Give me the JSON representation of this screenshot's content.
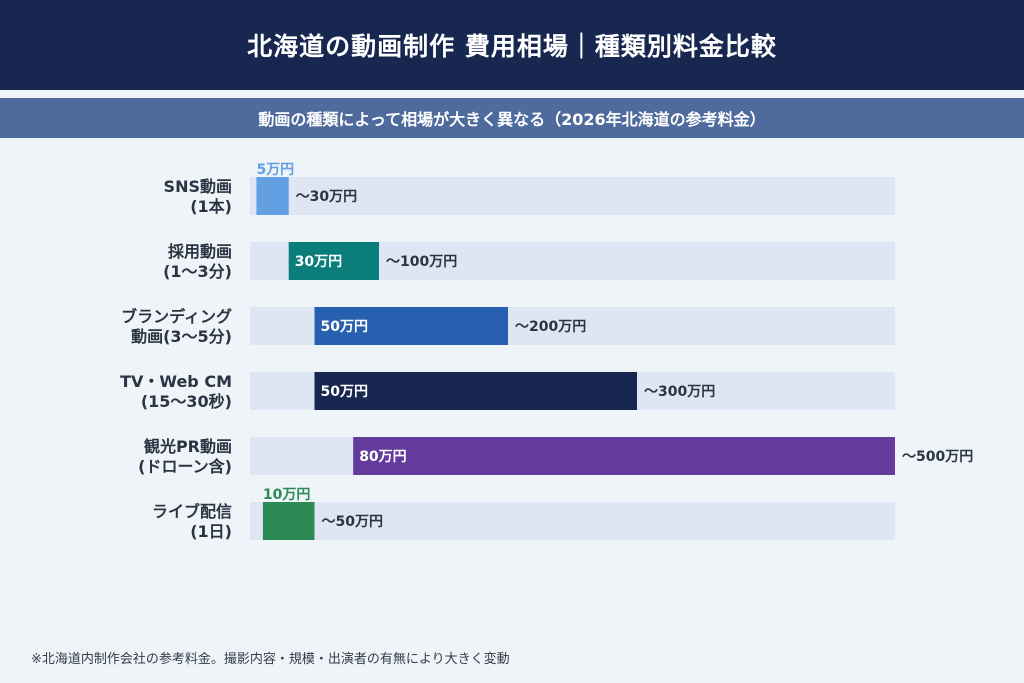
{
  "header": {
    "title": "北海道の動画制作 費用相場｜種類別料金比較",
    "subtitle": "動画の種類によって相場が大きく異なる（2026年北海道の参考料金）"
  },
  "chart_data": {
    "type": "bar",
    "orientation": "horizontal-range",
    "unit": "万円",
    "categories": [
      [
        "SNS動画",
        "(1本)"
      ],
      [
        "採用動画",
        "(1〜3分)"
      ],
      [
        "ブランディング",
        "動画(3〜5分)"
      ],
      [
        "TV・Web CM",
        "(15〜30秒)"
      ],
      [
        "観光PR動画",
        "(ドローン含)"
      ],
      [
        "ライブ配信",
        "(1日)"
      ]
    ],
    "series": [
      {
        "values_min": [
          5,
          30,
          50,
          50,
          80,
          10
        ],
        "values_max": [
          30,
          100,
          200,
          300,
          500,
          50
        ],
        "min_labels": [
          "5万円",
          "30万円",
          "50万円",
          "50万円",
          "80万円",
          "10万円"
        ],
        "max_labels": [
          "〜30万円",
          "〜100万円",
          "〜200万円",
          "〜300万円",
          "〜500万円",
          "〜50万円"
        ],
        "colors": [
          "#62a0e3",
          "#0b7e7c",
          "#2860b0",
          "#172750",
          "#643a9c",
          "#2e8a55"
        ]
      }
    ],
    "track_color": "#dee5f3",
    "xlim": [
      0,
      500
    ]
  },
  "footnote": "※北海道内制作会社の参考料金。撮影内容・規模・出演者の有無により大きく変動"
}
